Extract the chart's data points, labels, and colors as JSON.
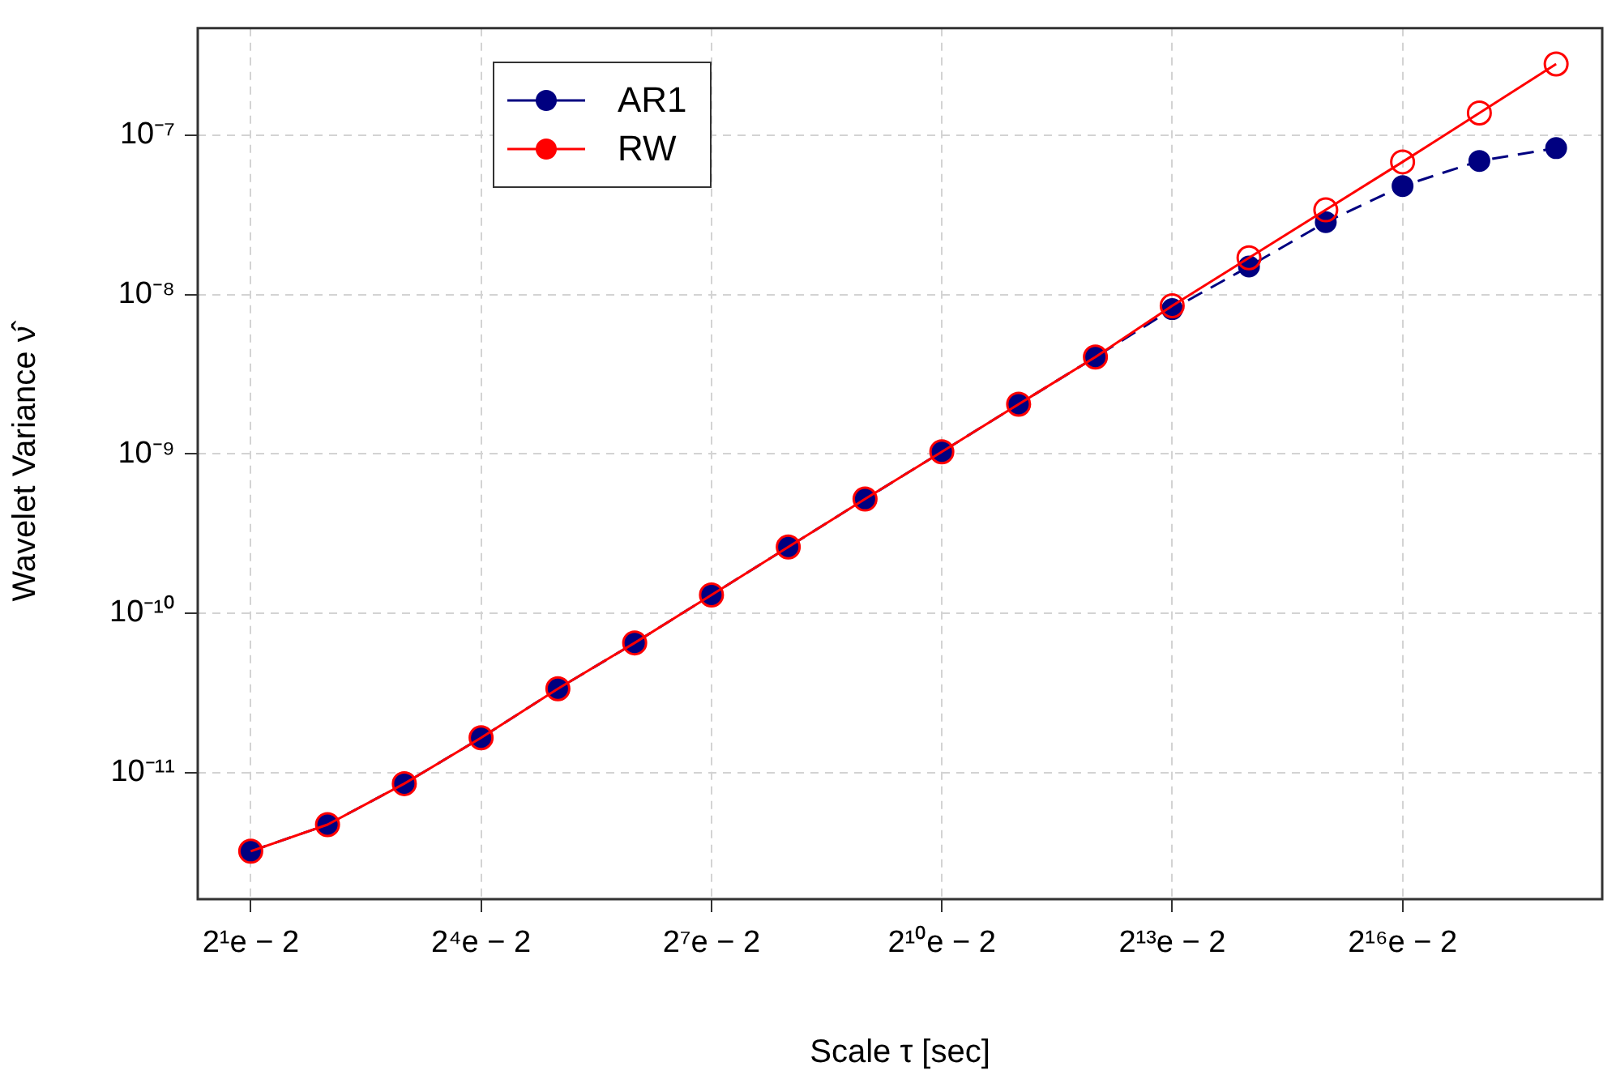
{
  "chart_data": {
    "type": "line",
    "xlabel": "Scale τ [sec]",
    "ylabel": "Wavelet Variance ν̂",
    "log": "y",
    "grid": true,
    "legend": "top left",
    "marker": "circle",
    "categories": [
      "2¹e − 2",
      null,
      null,
      "2⁴e − 2",
      null,
      null,
      "2⁷e − 2",
      null,
      null,
      "2¹⁰e − 2",
      null,
      null,
      "2¹³e − 2",
      null,
      null,
      "2¹⁶e − 2",
      null,
      null
    ],
    "ylim": [
      1.6e-12,
      4.7e-07
    ],
    "yticks": [
      {
        "value": 1e-11,
        "label": "10⁻¹¹"
      },
      {
        "value": 1e-10,
        "label": "10⁻¹⁰"
      },
      {
        "value": 1e-09,
        "label": "10⁻⁹"
      },
      {
        "value": 1e-08,
        "label": "10⁻⁸"
      },
      {
        "value": 1e-07,
        "label": "10⁻⁷"
      }
    ],
    "series": [
      {
        "name": "AR1",
        "color": "#000080",
        "line_style": "dashed",
        "values": [
          3.2e-12,
          4.7e-12,
          8.5e-12,
          1.65e-11,
          3.35e-11,
          6.5e-11,
          1.3e-10,
          2.6e-10,
          5.2e-10,
          1.03e-09,
          2.05e-09,
          4.05e-09,
          8.1e-09,
          1.5e-08,
          2.85e-08,
          4.8e-08,
          6.9e-08,
          8.3e-08
        ]
      },
      {
        "name": "RW",
        "color": "#ff0000",
        "line_style": "solid",
        "values": [
          3.2e-12,
          4.7e-12,
          8.5e-12,
          1.65e-11,
          3.35e-11,
          6.5e-11,
          1.3e-10,
          2.6e-10,
          5.2e-10,
          1.03e-09,
          2.05e-09,
          4.05e-09,
          8.5e-09,
          1.7e-08,
          3.4e-08,
          6.8e-08,
          1.38e-07,
          2.8e-07
        ]
      }
    ]
  }
}
